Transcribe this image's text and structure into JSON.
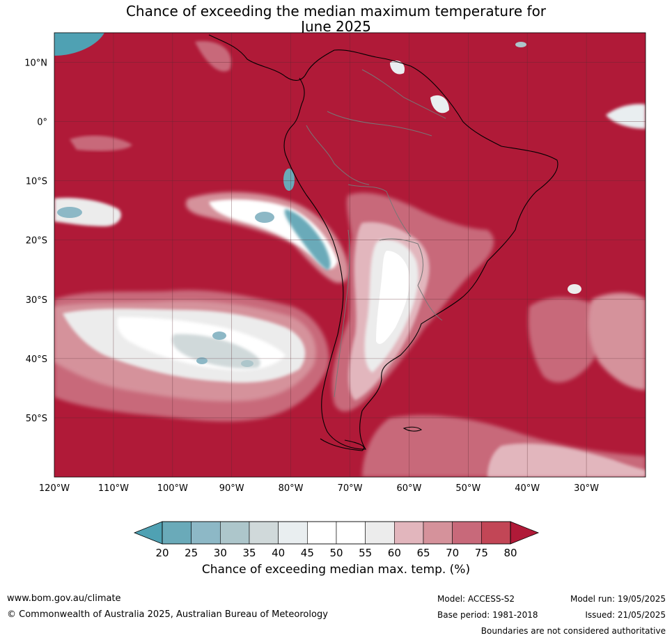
{
  "title_line1": "Chance of exceeding the median maximum temperature for",
  "title_line2": "June 2025",
  "map": {
    "lon_range": [
      -120,
      -20
    ],
    "lat_range": [
      -60,
      15
    ],
    "lat_ticks": [
      {
        "value": 10,
        "label": "10°N"
      },
      {
        "value": 0,
        "label": "0°"
      },
      {
        "value": -10,
        "label": "10°S"
      },
      {
        "value": -20,
        "label": "20°S"
      },
      {
        "value": -30,
        "label": "30°S"
      },
      {
        "value": -40,
        "label": "40°S"
      },
      {
        "value": -50,
        "label": "50°S"
      }
    ],
    "lon_ticks": [
      {
        "value": -120,
        "label": "120°W"
      },
      {
        "value": -110,
        "label": "110°W"
      },
      {
        "value": -100,
        "label": "100°W"
      },
      {
        "value": -90,
        "label": "90°W"
      },
      {
        "value": -80,
        "label": "80°W"
      },
      {
        "value": -70,
        "label": "70°W"
      },
      {
        "value": -60,
        "label": "60°W"
      },
      {
        "value": -50,
        "label": "50°W"
      },
      {
        "value": -40,
        "label": "40°W"
      },
      {
        "value": -30,
        "label": "30°W"
      }
    ],
    "background_color": "#b01a38"
  },
  "colorbar": {
    "labels": [
      "20",
      "25",
      "30",
      "35",
      "40",
      "45",
      "50",
      "55",
      "60",
      "65",
      "70",
      "75",
      "80"
    ],
    "colors": [
      "#6aaab9",
      "#8db8c6",
      "#adc6cb",
      "#d0d9da",
      "#e9eef0",
      "#ffffff",
      "#ffffff",
      "#ececec",
      "#e2b6bd",
      "#d5929b",
      "#c8697a",
      "#c24656"
    ],
    "under_color": "#4fa1b3",
    "over_color": "#b01a38",
    "title": "Chance of exceeding median max. temp. (%)"
  },
  "footer": {
    "website": "www.bom.gov.au/climate",
    "copyright": "© Commonwealth of Australia 2025, Australian Bureau of Meteorology",
    "model": "Model: ACCESS-S2",
    "base_period": "Base period: 1981-2018",
    "model_run": "Model run: 19/05/2025",
    "issued": "Issued: 21/05/2025",
    "disclaimer": "Boundaries are not considered authoritative"
  }
}
